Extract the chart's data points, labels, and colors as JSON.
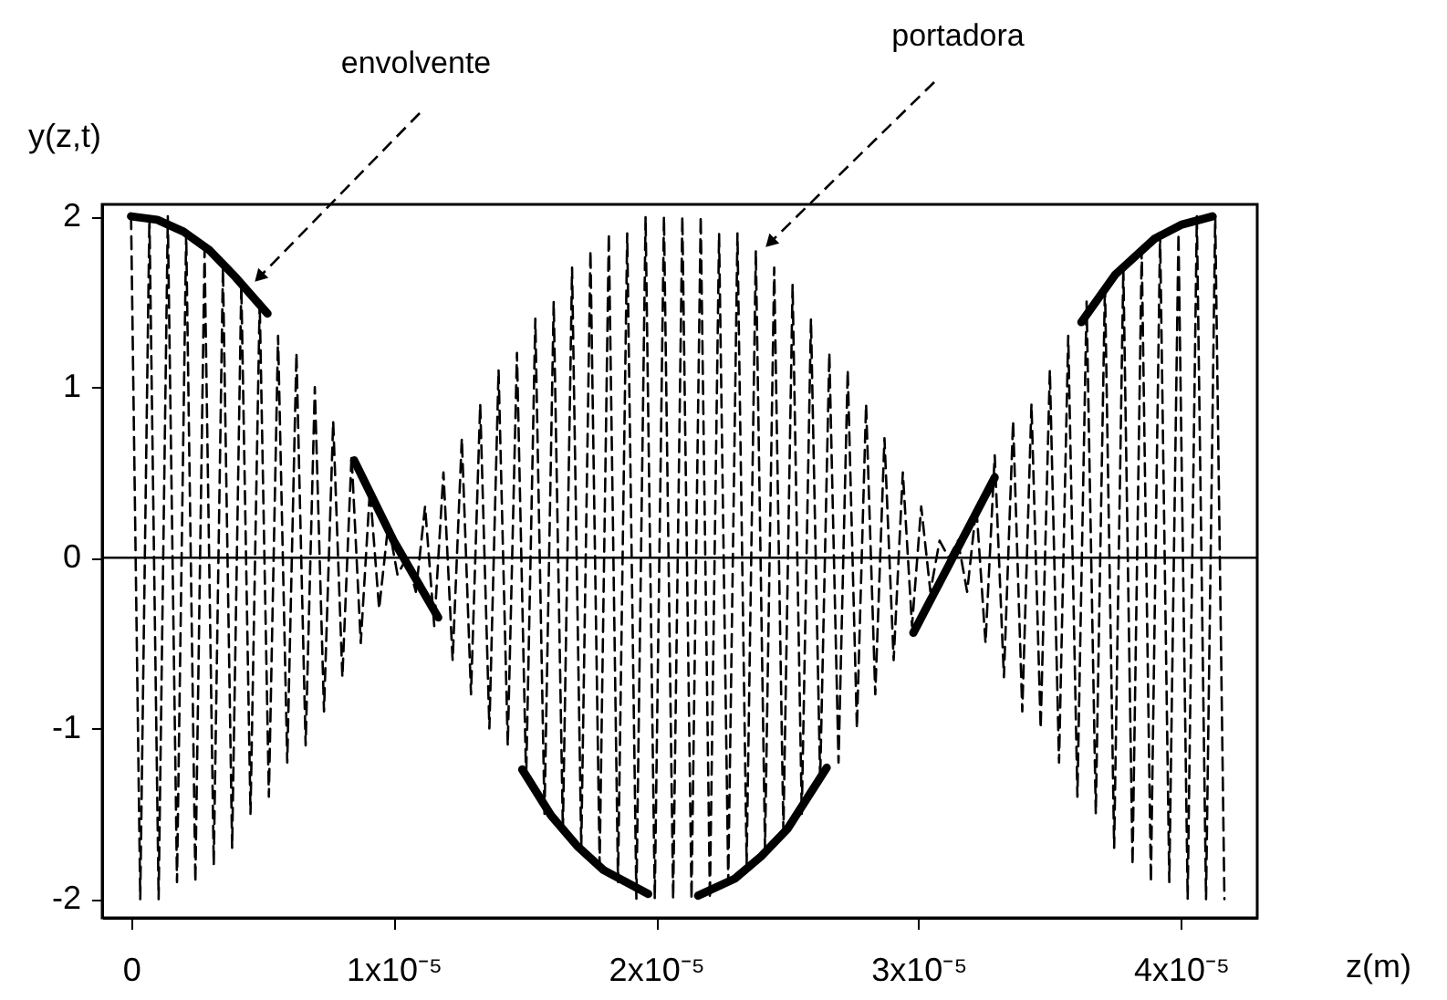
{
  "chart_data": {
    "type": "line",
    "xlabel": "z(m)",
    "ylabel": "y(z,t)",
    "xlim": [
      -1.1e-06,
      4.29e-05
    ],
    "ylim": [
      -2.11,
      2.07
    ],
    "xticks": [
      0,
      {
        "value": 1e-05,
        "label": "1x10⁻⁵"
      },
      {
        "value": 2e-05,
        "label": "2x10⁻⁵"
      },
      {
        "value": 3e-05,
        "label": "3x10⁻⁵"
      },
      {
        "value": 4e-05,
        "label": "4x10⁻⁵"
      }
    ],
    "yticks": [
      -2,
      -1,
      0,
      1,
      2
    ],
    "grid": false,
    "series": [
      {
        "color": "#000000",
        "line_style": "dashed",
        "x": [
          0,
          3.5e-07,
          7e-07,
          1.05e-06,
          1.4e-06,
          1.75e-06,
          2.1e-06,
          2.45e-06,
          2.8e-06,
          3.15e-06,
          3.5e-06,
          3.85e-06,
          4.2e-06,
          4.55e-06,
          4.9e-06,
          5.25e-06,
          5.6e-06,
          5.95e-06,
          6.3e-06,
          6.65e-06,
          7e-06,
          7.35e-06,
          7.7e-06,
          8.05e-06,
          8.4e-06,
          8.75e-06,
          9.1e-06,
          9.45e-06,
          9.8e-06,
          1.015e-05,
          1.05e-05,
          1.085e-05,
          1.12e-05,
          1.155e-05,
          1.19e-05,
          1.225e-05,
          1.26e-05,
          1.295e-05,
          1.33e-05,
          1.365e-05,
          1.4e-05,
          1.435e-05,
          1.47e-05,
          1.505e-05,
          1.54e-05,
          1.575e-05,
          1.61e-05,
          1.645e-05,
          1.68e-05,
          1.715e-05,
          1.75e-05,
          1.785e-05,
          1.82e-05,
          1.855e-05,
          1.89e-05,
          1.925e-05,
          1.96e-05,
          1.995e-05,
          2.03e-05,
          2.065e-05,
          2.1e-05,
          2.135e-05,
          2.17e-05,
          2.205e-05,
          2.24e-05,
          2.275e-05,
          2.31e-05,
          2.345e-05,
          2.38e-05,
          2.415e-05,
          2.45e-05,
          2.485e-05,
          2.52e-05,
          2.555e-05,
          2.59e-05,
          2.625e-05,
          2.66e-05,
          2.695e-05,
          2.73e-05,
          2.765e-05,
          2.8e-05,
          2.835e-05,
          2.87e-05,
          2.905e-05,
          2.94e-05,
          2.975e-05,
          3.01e-05,
          3.045e-05,
          3.08e-05,
          3.115e-05,
          3.15e-05,
          3.185e-05,
          3.22e-05,
          3.255e-05,
          3.29e-05,
          3.325e-05,
          3.36e-05,
          3.395e-05,
          3.43e-05,
          3.465e-05,
          3.5e-05,
          3.535e-05,
          3.57e-05,
          3.605e-05,
          3.64e-05,
          3.675e-05,
          3.71e-05,
          3.745e-05,
          3.78e-05,
          3.815e-05,
          3.85e-05,
          3.885e-05,
          3.92e-05,
          3.955e-05,
          3.99e-05,
          4.025e-05,
          4.06e-05,
          4.095e-05,
          4.13e-05,
          4.165e-05
        ],
        "values": [
          2.0,
          -2.0,
          2.0,
          -2.0,
          2.0,
          -1.9,
          1.9,
          -1.9,
          1.8,
          -1.8,
          1.7,
          -1.7,
          1.6,
          -1.5,
          1.5,
          -1.4,
          1.3,
          -1.2,
          1.2,
          -1.1,
          1.0,
          -0.9,
          0.8,
          -0.7,
          0.6,
          -0.5,
          0.4,
          -0.3,
          0.2,
          -0.1,
          0.0,
          -0.2,
          0.3,
          -0.4,
          0.5,
          -0.6,
          0.7,
          -0.8,
          0.9,
          -1.0,
          1.1,
          -1.1,
          1.2,
          -1.3,
          1.4,
          -1.5,
          1.5,
          -1.6,
          1.7,
          -1.7,
          1.8,
          -1.8,
          1.9,
          -1.9,
          1.9,
          -2.0,
          2.0,
          -2.0,
          2.0,
          -2.0,
          2.0,
          -2.0,
          2.0,
          -2.0,
          1.9,
          -1.9,
          1.9,
          -1.8,
          1.8,
          -1.7,
          1.7,
          -1.6,
          1.6,
          -1.5,
          1.4,
          -1.3,
          1.2,
          -1.2,
          1.1,
          -1.0,
          0.9,
          -0.8,
          0.7,
          -0.6,
          0.5,
          -0.4,
          0.3,
          -0.2,
          0.1,
          0.0,
          0.1,
          -0.2,
          0.3,
          -0.5,
          0.6,
          -0.7,
          0.8,
          -0.9,
          0.9,
          -1.0,
          1.1,
          -1.2,
          1.3,
          -1.4,
          1.5,
          -1.5,
          1.6,
          -1.7,
          1.7,
          -1.8,
          1.8,
          -1.9,
          1.9,
          -1.9,
          1.9,
          -2.0,
          2.0,
          -2.0,
          2.0,
          -2.0
        ]
      },
      {
        "color": "#000000",
        "line_style": "solid",
        "x": [
          0,
          1e-06,
          2e-06,
          3e-06,
          4e-06,
          5.2e-06,
          6.8e-06,
          8.5e-06,
          1e-05,
          1.17e-05,
          1.33e-05,
          1.49e-05,
          1.6e-05,
          1.7e-05,
          1.8e-05,
          1.97e-05,
          2.07e-05,
          2.16e-05,
          2.3e-05,
          2.4e-05,
          2.5e-05,
          2.65e-05,
          2.8e-05,
          2.98e-05,
          3.13e-05,
          3.29e-05,
          3.45e-05,
          3.62e-05,
          3.75e-05,
          3.9e-05,
          4e-05,
          4.12e-05
        ],
        "values": [
          2.0,
          1.98,
          1.91,
          1.8,
          1.64,
          1.43,
          null,
          0.57,
          0.1,
          -0.35,
          null,
          -1.24,
          -1.51,
          -1.69,
          -1.83,
          -1.97,
          null,
          -1.98,
          -1.88,
          -1.75,
          -1.59,
          -1.23,
          null,
          -0.44,
          0.0,
          0.47,
          null,
          1.38,
          1.66,
          1.87,
          1.95,
          2.0
        ]
      }
    ],
    "ref_lines": [
      {
        "axis": "y",
        "value": 0
      }
    ],
    "annotations": [
      "envolvente",
      "portadora"
    ]
  }
}
